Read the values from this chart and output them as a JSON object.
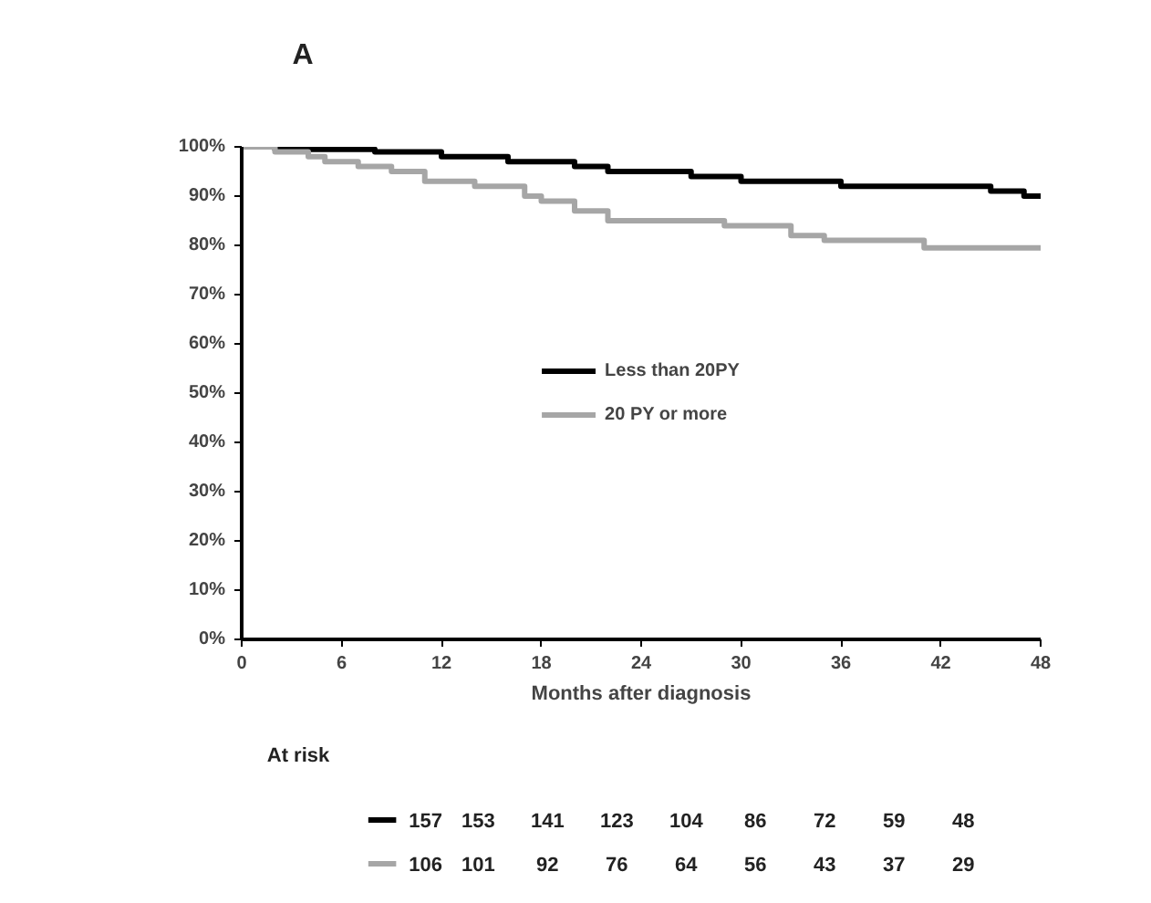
{
  "chart_data": {
    "type": "step",
    "xlabel": "Months after diagnosis",
    "xlim": [
      0,
      48
    ],
    "xticks": [
      0,
      6,
      12,
      18,
      24,
      30,
      36,
      42,
      48
    ],
    "ylim": [
      0,
      100
    ],
    "yticks": [
      {
        "value": 0,
        "label": "0%"
      },
      {
        "value": 10,
        "label": "10%"
      },
      {
        "value": 20,
        "label": "20%"
      },
      {
        "value": 30,
        "label": "30%"
      },
      {
        "value": 40,
        "label": "40%"
      },
      {
        "value": 50,
        "label": "50%"
      },
      {
        "value": 60,
        "label": "60%"
      },
      {
        "value": 70,
        "label": "70%"
      },
      {
        "value": 80,
        "label": "80%"
      },
      {
        "value": 90,
        "label": "90%"
      },
      {
        "value": 100,
        "label": "100%"
      }
    ],
    "grid": false,
    "legend": "center",
    "marker": "none",
    "line_style": "solid",
    "series": [
      {
        "name": "Less than 20PY",
        "color": "#000000",
        "x": [
          0,
          2,
          8,
          12,
          16,
          20,
          22,
          27,
          30,
          36,
          45,
          47,
          48
        ],
        "values": [
          100,
          99.5,
          99,
          98,
          97,
          96,
          95,
          94,
          93,
          92,
          91,
          90,
          90
        ]
      },
      {
        "name": "20 PY or more",
        "color": "#a6a6a6",
        "x": [
          0,
          2,
          4,
          5,
          7,
          9,
          11,
          14,
          17,
          18,
          20,
          22,
          29,
          33,
          35,
          41,
          48
        ],
        "values": [
          100,
          99,
          98,
          97,
          96,
          95,
          93,
          92,
          90,
          89,
          87,
          85,
          84,
          82,
          81,
          79.5,
          79.5
        ]
      }
    ],
    "annotations": [
      "A",
      "At risk",
      "157 153 141 123 104 86 72 59 48",
      "106 101 92 76 64 56 43 37 29"
    ]
  }
}
